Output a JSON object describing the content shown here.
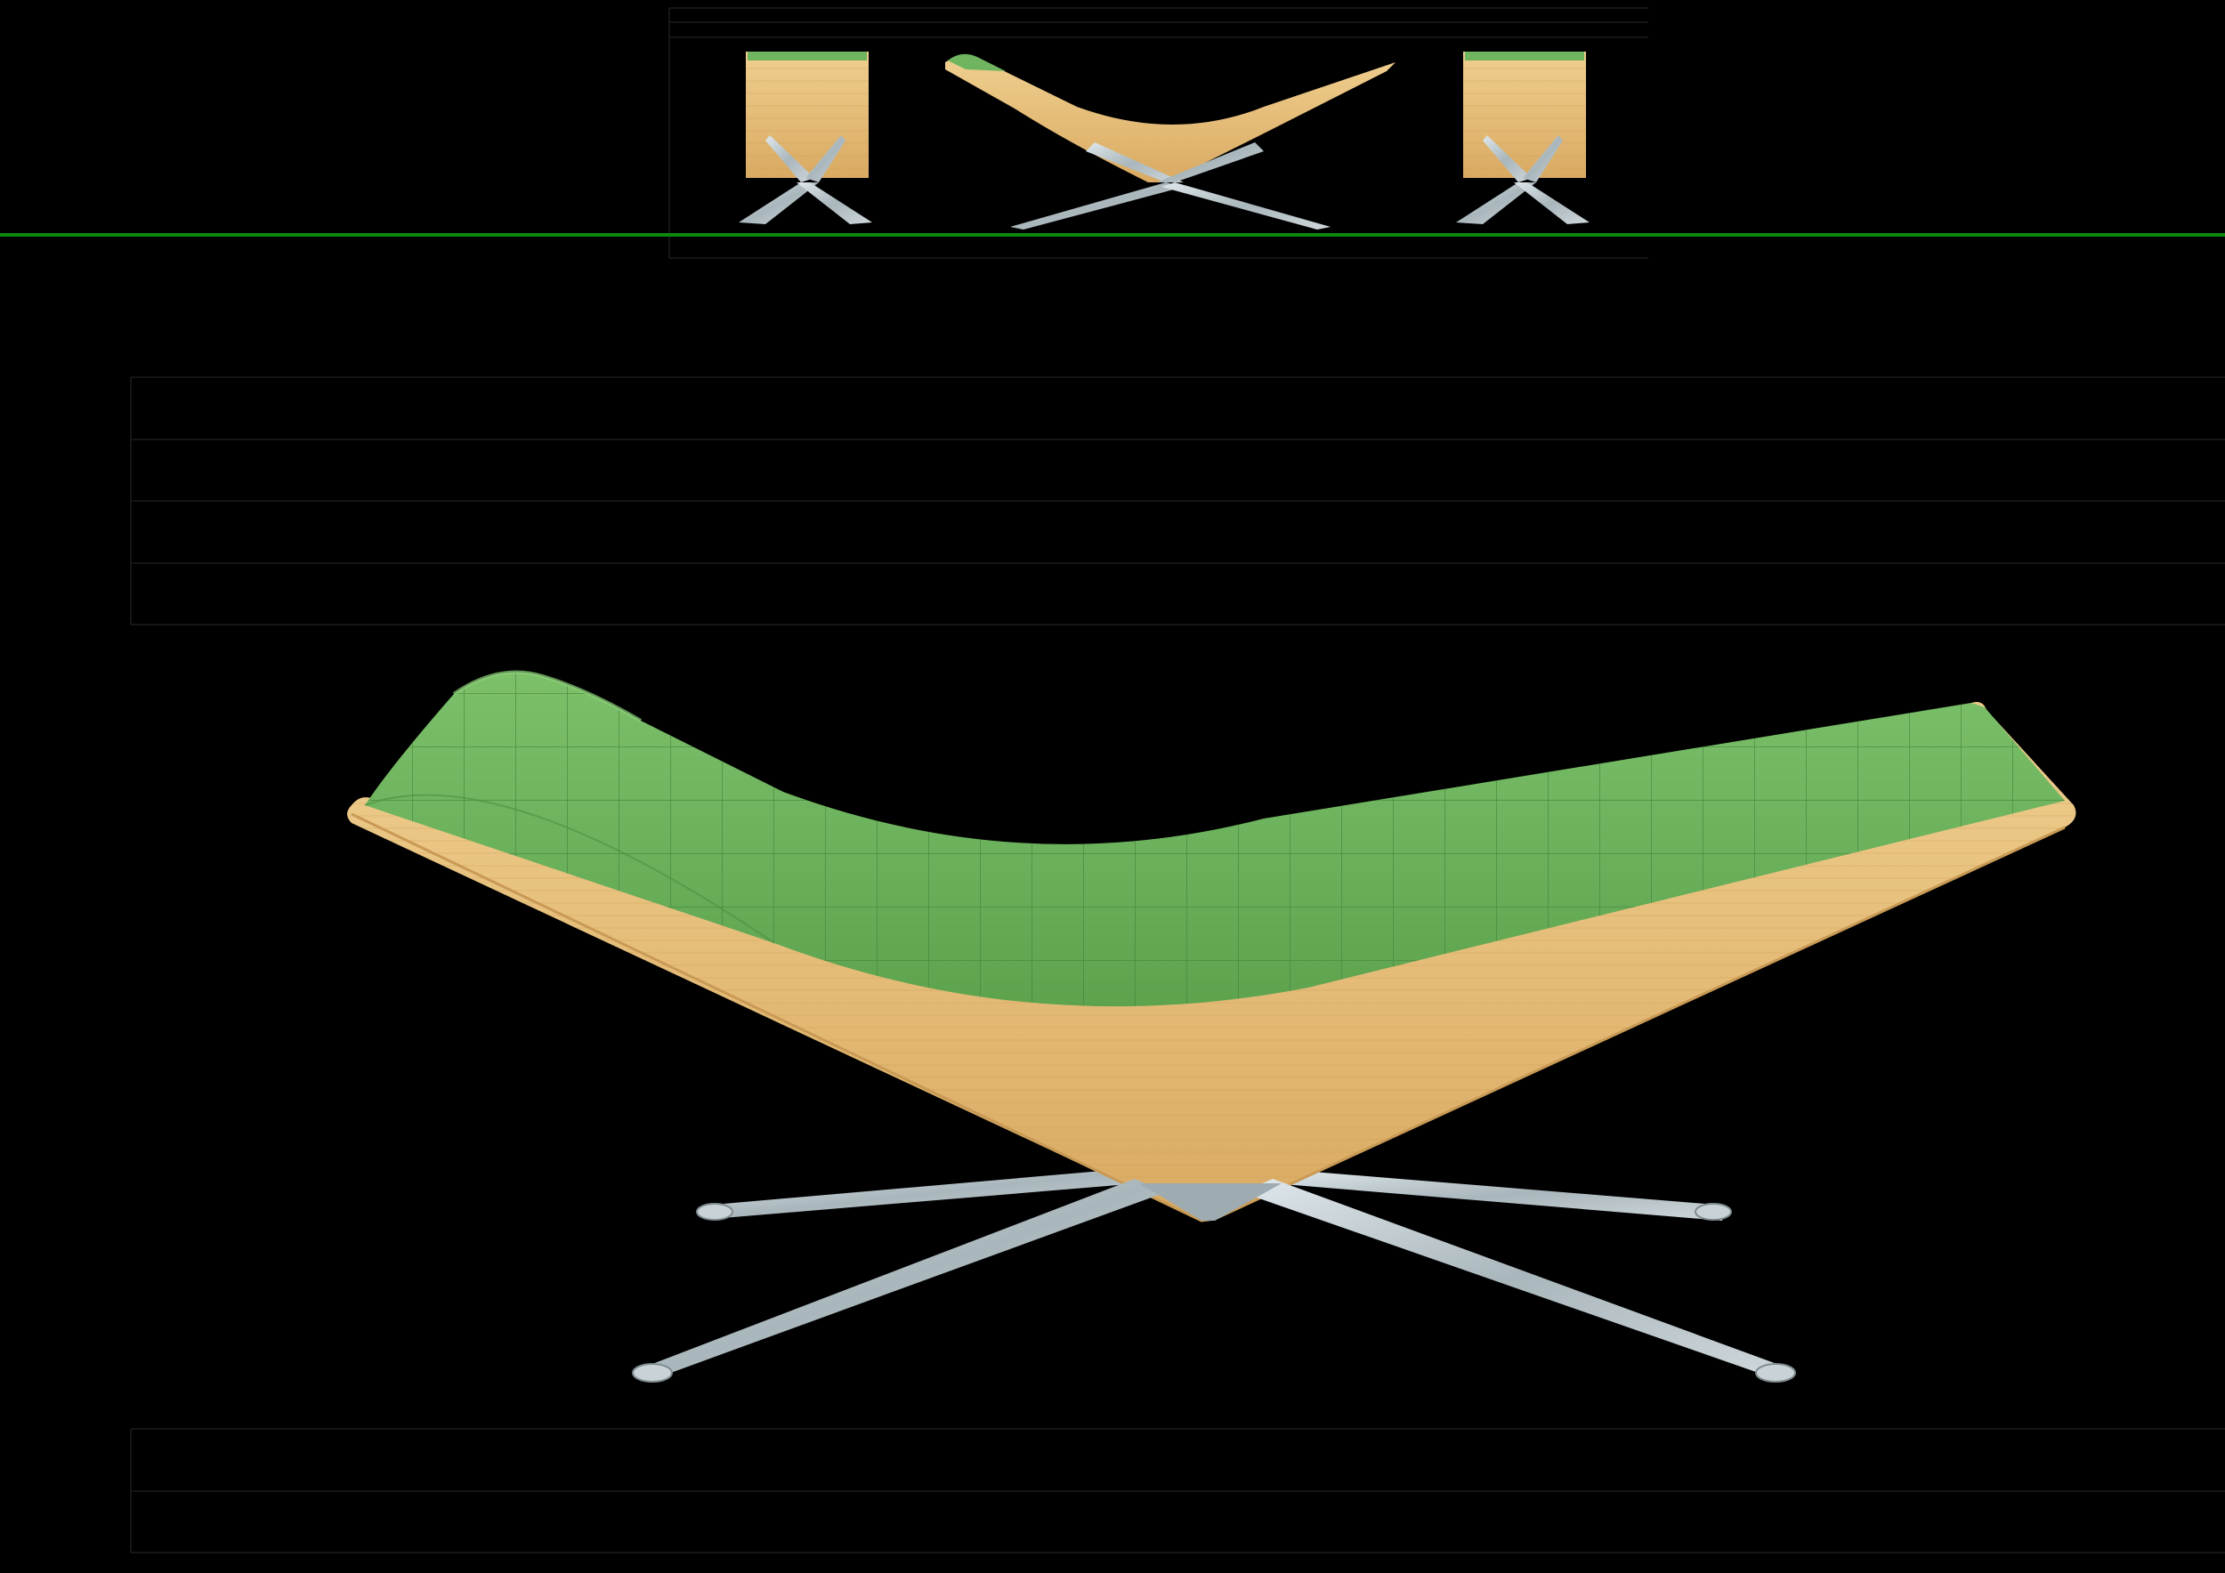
{
  "canvas": {
    "background": "#000000",
    "guide_line_color": "#1c1c1c",
    "divider_color": "#0b8a0b"
  },
  "colors": {
    "cushion": "#6fb45f",
    "cushion_dark": "#4c8f40",
    "wood": "#e7c07b",
    "wood_dark": "#c99a55",
    "metal": "#b9c4c9",
    "metal_dark": "#7f8b90"
  },
  "views": [
    {
      "name": "front-view"
    },
    {
      "name": "side-view"
    },
    {
      "name": "back-view"
    },
    {
      "name": "perspective-view"
    }
  ]
}
